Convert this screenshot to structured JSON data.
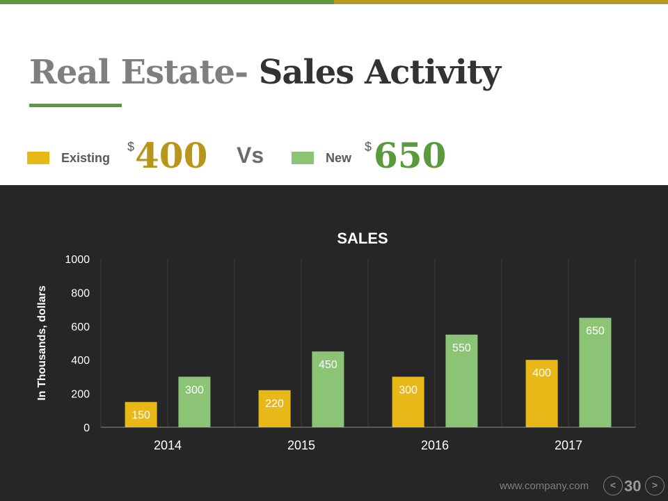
{
  "header": {
    "title_part1": "Real Estate- ",
    "title_part2": "Sales Activity"
  },
  "summary": {
    "existing_label": "Existing",
    "existing_currency": "$",
    "existing_value": "400",
    "vs_label": "Vs",
    "new_label": "New",
    "new_currency": "$",
    "new_value": "650"
  },
  "colors": {
    "green_accent": "#5a9a3c",
    "gold_accent": "#b89a1e",
    "existing_bar": "#e8b818",
    "new_bar": "#8cc475",
    "existing_value_text": "#b8961c",
    "new_value_text": "#5a9a3c",
    "panel_bg": "#262626"
  },
  "chart_data": {
    "type": "bar",
    "title": "SALES",
    "xlabel": "",
    "ylabel": "In Thousands, dollars",
    "categories": [
      "2014",
      "2015",
      "2016",
      "2017"
    ],
    "series": [
      {
        "name": "Existing",
        "values": [
          150,
          220,
          300,
          400
        ]
      },
      {
        "name": "New",
        "values": [
          300,
          450,
          550,
          650
        ]
      }
    ],
    "ylim": [
      0,
      1000
    ],
    "yticks": [
      0,
      200,
      400,
      600,
      800,
      1000
    ],
    "data_labels": true,
    "grid": "vertical"
  },
  "footer": {
    "url": "www.company.com",
    "prev_label": "<",
    "page_number": "30",
    "next_label": ">"
  }
}
